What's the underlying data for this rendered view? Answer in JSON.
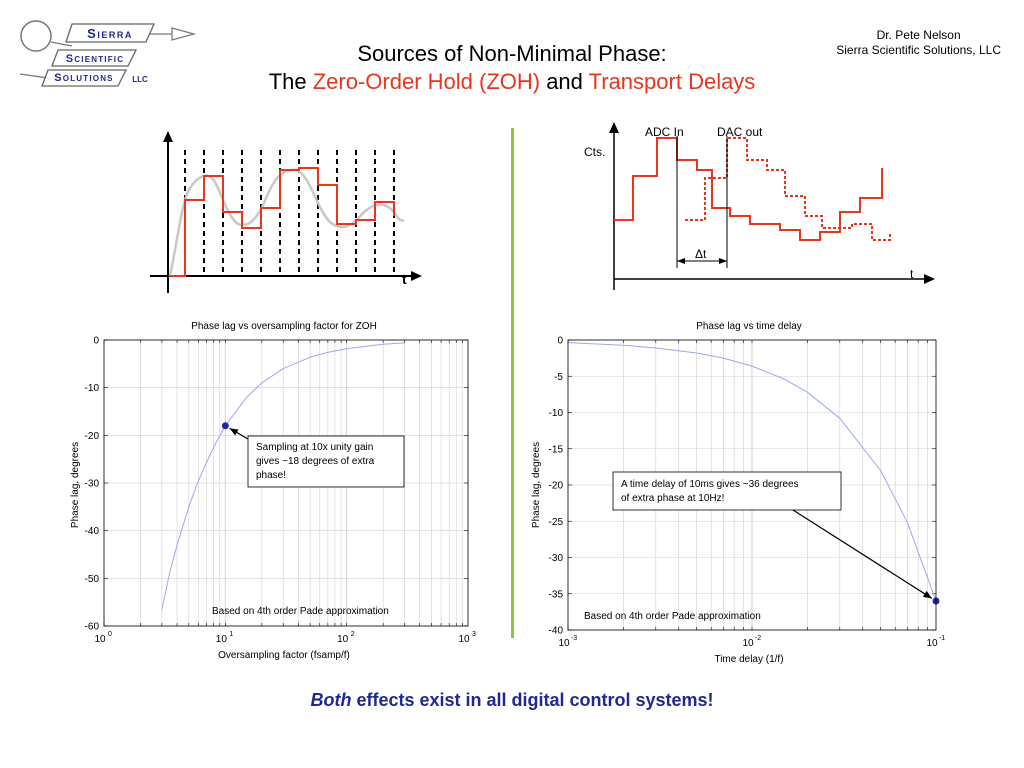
{
  "logo": {
    "line1": "Sierra",
    "line2": "Scientific",
    "line3": "Solutions",
    "line4": "LLC"
  },
  "author": {
    "name": "Dr. Pete Nelson",
    "company": "Sierra Scientific Solutions, LLC"
  },
  "title": {
    "line1": "Sources of Non-Minimal Phase:",
    "pre": "The ",
    "zoh": "Zero-Order Hold (ZOH)",
    "mid": " and ",
    "td": "Transport Delays"
  },
  "colors": {
    "accent_red": "#e8361c",
    "divider_green": "#8cc63f",
    "footer_blue": "#1f2a8f",
    "curve_blue": "#9aa8f0",
    "marker_blue": "#1f2a9f"
  },
  "zoh_diagram": {
    "axis_label": "t"
  },
  "delay_diagram": {
    "adc_label": "ADC In",
    "dac_label": "DAC out",
    "y_label": "Cts.",
    "delta_label": "Δt",
    "t_label": "t"
  },
  "footer": {
    "emphasis": "Both",
    "rest": " effects exist in all digital control systems!"
  },
  "chart_data": [
    {
      "type": "line",
      "title": "Phase lag vs oversampling factor for ZOH",
      "xlabel": "Oversampling factor (fsamp/f)",
      "ylabel": "Phase lag, degrees",
      "xscale": "log",
      "xlim": [
        1,
        1000
      ],
      "ylim": [
        -60,
        0
      ],
      "grid": true,
      "y_ticks": [
        "0",
        "-10",
        "-20",
        "-30",
        "-40",
        "-50",
        "-60"
      ],
      "x_ticks": [
        {
          "base": "10",
          "exp": "0"
        },
        {
          "base": "10",
          "exp": "1"
        },
        {
          "base": "10",
          "exp": "2"
        },
        {
          "base": "10",
          "exp": "3"
        }
      ],
      "x": [
        3,
        3.5,
        4,
        5,
        6,
        7,
        8,
        10,
        15,
        20,
        30,
        50,
        70,
        100,
        200,
        300
      ],
      "y": [
        -56.5,
        -48.5,
        -43,
        -35,
        -29.5,
        -25.7,
        -22.5,
        -18,
        -12,
        -9,
        -6,
        -3.6,
        -2.6,
        -1.8,
        -0.9,
        -0.6
      ],
      "highlight_point": {
        "x": 10,
        "y": -18
      },
      "annotation": "Sampling at 10x unity gain gives ~18 degrees of extra phase!",
      "note": "Based on 4th order Pade approximation"
    },
    {
      "type": "line",
      "title": "Phase lag vs time delay",
      "xlabel": "Time delay (1/f)",
      "ylabel": "Phase lag, degrees",
      "xscale": "log",
      "xlim": [
        0.001,
        0.1
      ],
      "ylim": [
        -40,
        0
      ],
      "grid": true,
      "y_ticks": [
        "0",
        "-5",
        "-10",
        "-15",
        "-20",
        "-25",
        "-30",
        "-35",
        "-40"
      ],
      "x_ticks": [
        {
          "base": "10",
          "exp": "-3"
        },
        {
          "base": "10",
          "exp": "-2"
        },
        {
          "base": "10",
          "exp": "-1"
        }
      ],
      "x": [
        0.001,
        0.002,
        0.003,
        0.005,
        0.007,
        0.01,
        0.015,
        0.02,
        0.03,
        0.05,
        0.07,
        0.1
      ],
      "y": [
        -0.36,
        -0.72,
        -1.1,
        -1.8,
        -2.5,
        -3.6,
        -5.4,
        -7.2,
        -10.8,
        -18,
        -25.2,
        -36
      ],
      "highlight_point": {
        "x": 0.1,
        "y": -36
      },
      "annotation": "A time delay of 10ms gives ~36 degrees of extra phase at 10Hz!",
      "note": "Based on 4th order Pade approximation"
    }
  ]
}
